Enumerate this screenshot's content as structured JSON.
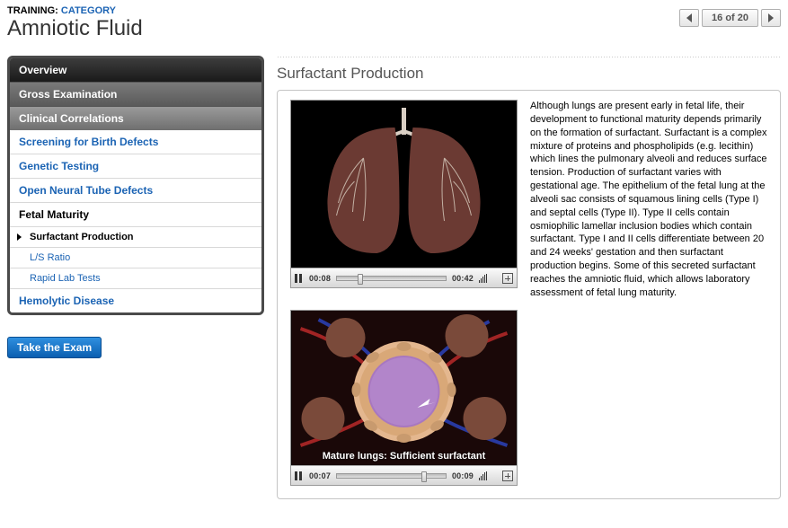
{
  "breadcrumb": {
    "training_label": "TRAINING:",
    "category_label": "CATEGORY"
  },
  "page_title": "Amniotic Fluid",
  "pager": {
    "text": "16 of 20"
  },
  "sidebar": {
    "overview": "Overview",
    "gross_exam": "Gross Examination",
    "clinical_corr": "Clinical Correlations",
    "links": {
      "screening": "Screening for Birth Defects",
      "genetic": "Genetic Testing",
      "neural": "Open Neural Tube Defects",
      "hemolytic": "Hemolytic Disease"
    },
    "fetal_maturity": "Fetal Maturity",
    "subs": {
      "surfactant": "Surfactant Production",
      "ls_ratio": "L/S Ratio",
      "rapid_lab": "Rapid Lab Tests"
    },
    "exam_button": "Take the Exam"
  },
  "content": {
    "heading": "Surfactant Production",
    "body_text": "Although lungs are present early in fetal life, their development to functional maturity depends primarily on the formation of surfactant. Surfactant is a complex mixture of proteins and phospholipids (e.g. lecithin) which lines the pulmonary alveoli and reduces surface tension. Production of surfactant varies with gestational age. The epithelium of the fetal lung at the alveoli sac consists of squamous lining cells (Type I) and septal cells (Type II). Type II cells contain osmiophilic lamellar inclusion bodies which contain surfactant. Type I and II cells differentiate between 20 and 24 weeks' gestation and then surfactant production begins. Some of this secreted surfactant reaches the amniotic fluid, which allows laboratory assessment of fetal lung maturity.",
    "video1": {
      "current_time": "00:08",
      "duration": "00:42",
      "progress_pct": 19,
      "lung_color": "#6b3a33",
      "lung_bg": "#000000"
    },
    "video2": {
      "current_time": "00:07",
      "duration": "00:09",
      "progress_pct": 78,
      "caption": "Mature lungs: Sufficient surfactant",
      "alveolus_outer": "#e4b78f",
      "alveolus_inner": "#a877c0",
      "vessel_red": "#b02828",
      "vessel_blue": "#2a3fb0"
    }
  },
  "colors": {
    "link": "#1c64b4",
    "panel_border": "#c5c5c5",
    "nav_border": "#4a4a4a"
  }
}
